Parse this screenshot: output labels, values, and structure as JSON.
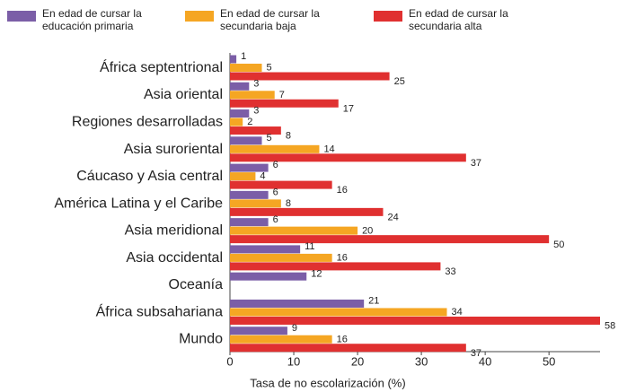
{
  "chart_data": {
    "type": "hbar",
    "x_label": "Tasa de no escolarización (%)",
    "categories": [
      "África septentrional",
      "Asia oriental",
      "Regiones desarrolladas",
      "Asia suroriental",
      "Cáucaso y Asia central",
      "América Latina y el Caribe",
      "Asia meridional",
      "Asia occidental",
      "Oceanía",
      "África subsahariana",
      "Mundo"
    ],
    "series": [
      {
        "name": "En edad de cursar la educación primaria",
        "color": "#7b5ea7",
        "values": [
          1,
          3,
          3,
          5,
          6,
          6,
          6,
          11,
          12,
          21,
          9
        ]
      },
      {
        "name": "En edad de cursar la secundaria baja",
        "color": "#f5a623",
        "values": [
          5,
          7,
          2,
          14,
          4,
          8,
          20,
          16,
          null,
          34,
          16
        ]
      },
      {
        "name": "En edad de cursar la secundaria alta",
        "color": "#e03030",
        "values": [
          25,
          17,
          8,
          37,
          16,
          24,
          50,
          33,
          null,
          58,
          37
        ]
      }
    ],
    "xlim": [
      0,
      58
    ],
    "xticks": [
      0,
      10,
      20,
      30,
      40,
      50
    ]
  }
}
